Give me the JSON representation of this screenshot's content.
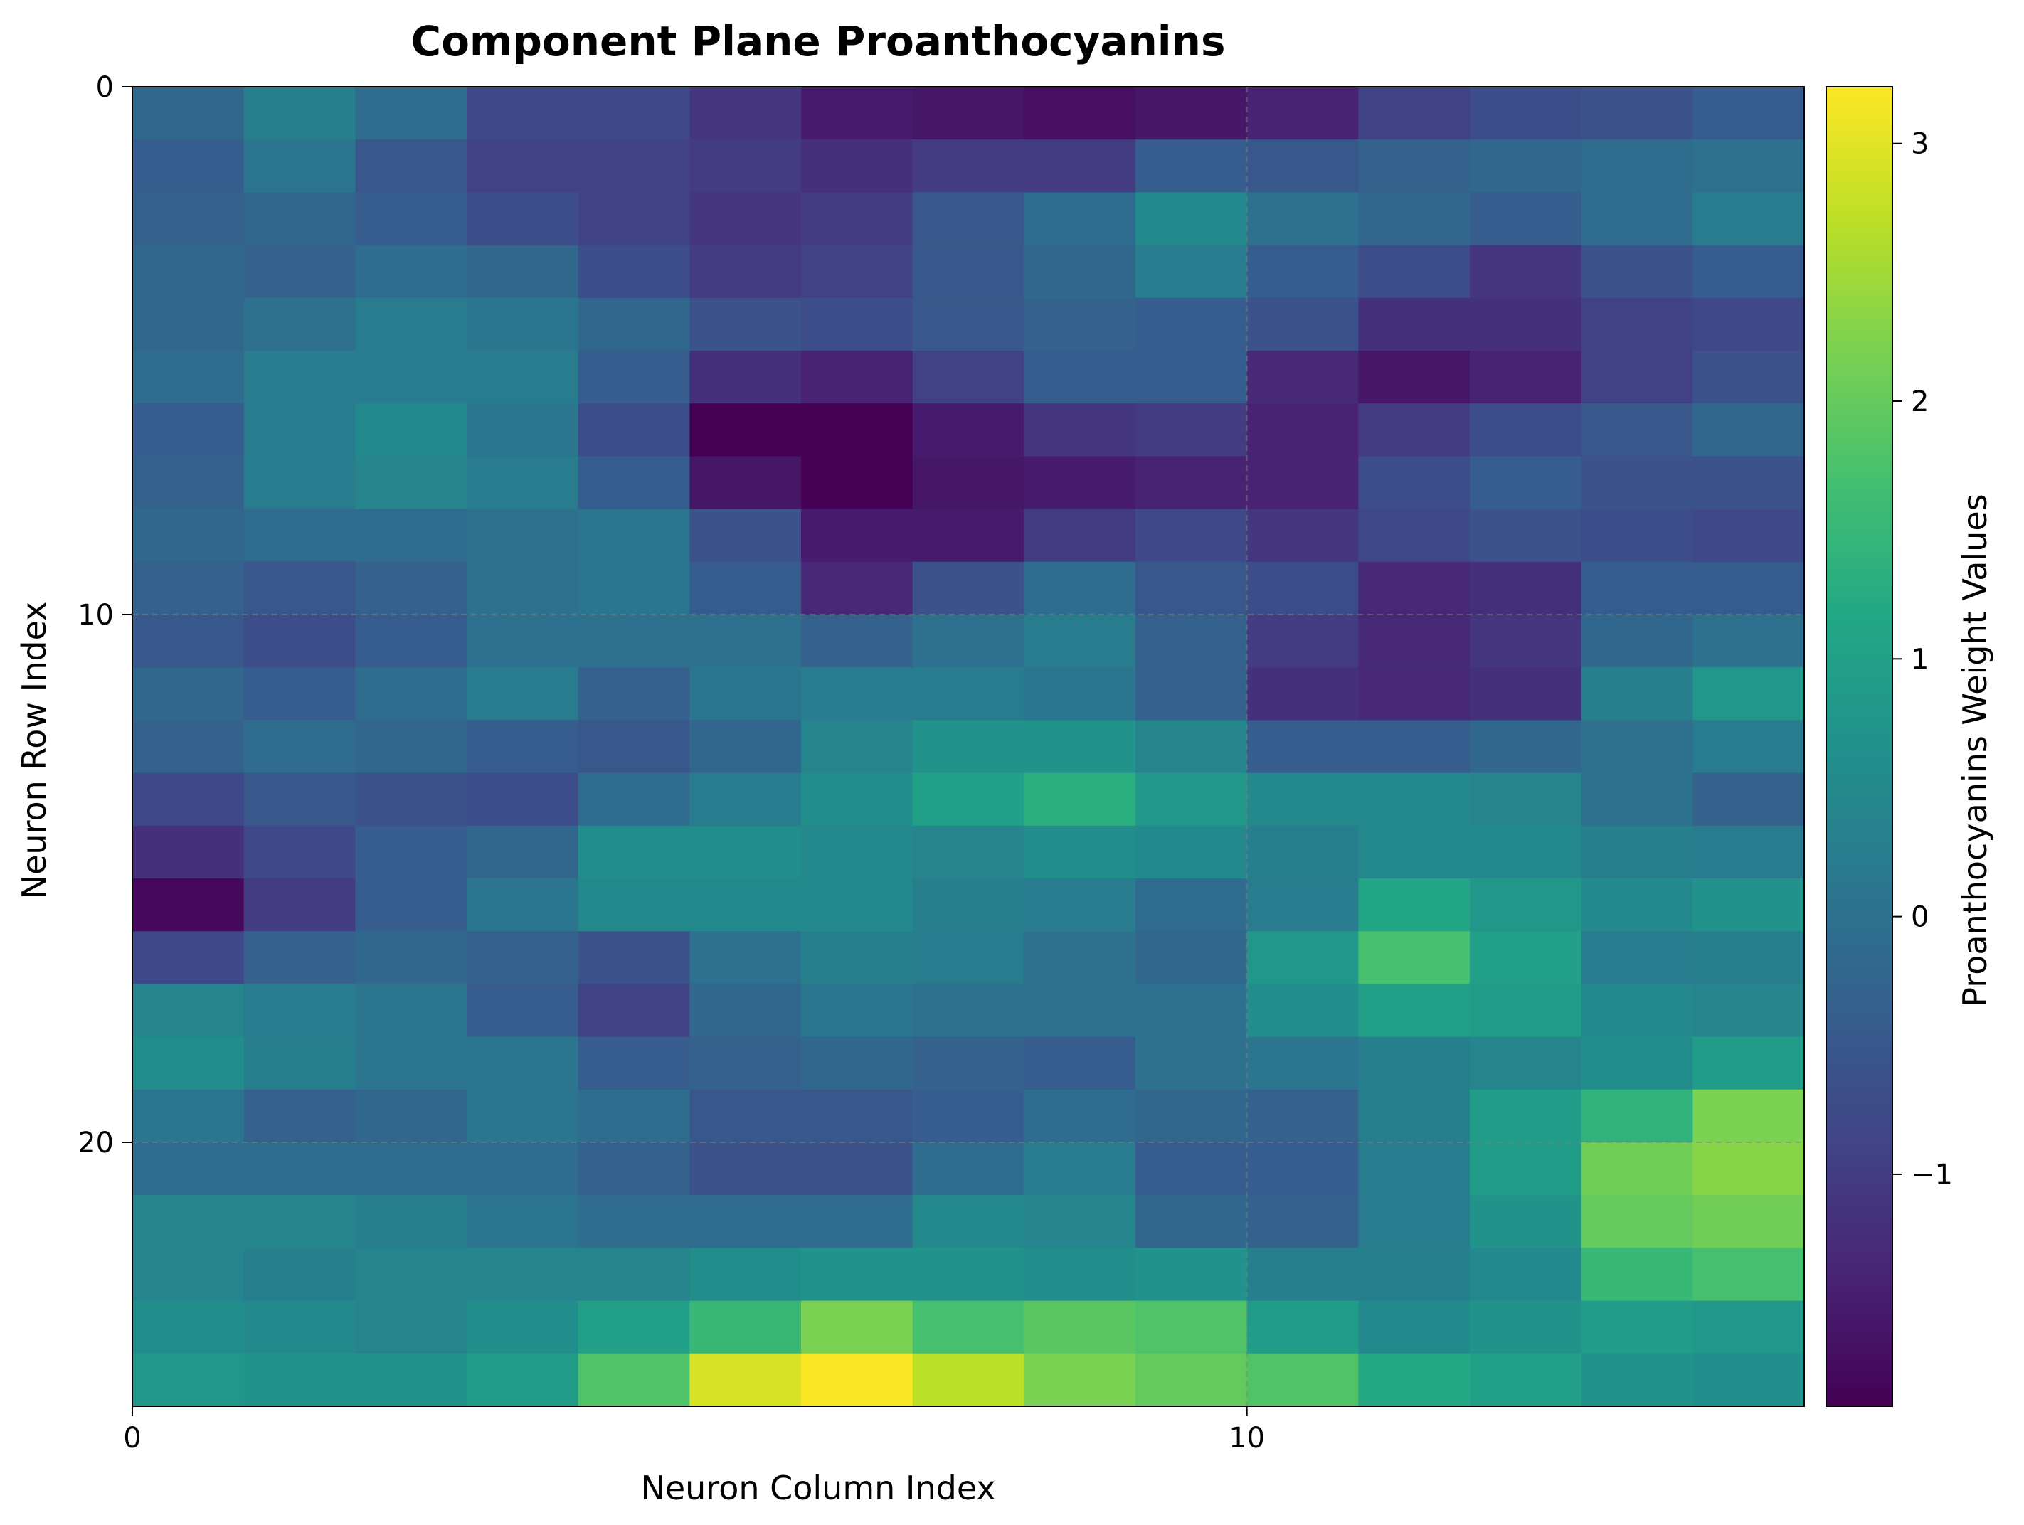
{
  "chart_data": {
    "type": "heatmap",
    "title": "Component Plane Proanthocyanins",
    "xlabel": "Neuron Column Index",
    "ylabel": "Neuron Row Index",
    "colorbar_label": "Proanthocyanins Weight Values",
    "colormap": "viridis",
    "value_range": [
      -1.9,
      3.22
    ],
    "x_ticks": [
      0,
      10
    ],
    "y_ticks": [
      0,
      10,
      20
    ],
    "colorbar_ticks": [
      -1,
      0,
      1,
      2,
      3
    ],
    "colorbar_tick_labels": [
      "−1",
      "0",
      "1",
      "2",
      "3"
    ],
    "grid": true,
    "y_axis_inverted": true,
    "rows": 25,
    "cols": 15,
    "values": [
      [
        -0.2,
        0.3,
        -0.1,
        -0.8,
        -0.8,
        -1.1,
        -1.5,
        -1.6,
        -1.7,
        -1.6,
        -1.4,
        -0.9,
        -0.7,
        -0.6,
        -0.4
      ],
      [
        -0.4,
        0.1,
        -0.5,
        -0.9,
        -0.9,
        -1.0,
        -1.2,
        -1.0,
        -1.0,
        -0.4,
        -0.5,
        -0.3,
        -0.2,
        -0.1,
        0.0
      ],
      [
        -0.3,
        -0.2,
        -0.4,
        -0.7,
        -0.9,
        -1.1,
        -1.0,
        -0.5,
        -0.1,
        0.5,
        0.0,
        -0.2,
        -0.4,
        -0.1,
        0.2
      ],
      [
        -0.2,
        -0.3,
        -0.1,
        -0.2,
        -0.7,
        -1.0,
        -0.9,
        -0.5,
        -0.2,
        0.2,
        -0.4,
        -0.7,
        -1.1,
        -0.6,
        -0.4
      ],
      [
        -0.2,
        0.0,
        0.2,
        0.1,
        -0.2,
        -0.6,
        -0.7,
        -0.5,
        -0.3,
        -0.4,
        -0.6,
        -1.2,
        -1.2,
        -0.9,
        -0.8
      ],
      [
        -0.1,
        0.2,
        0.2,
        0.2,
        -0.4,
        -1.2,
        -1.4,
        -0.9,
        -0.4,
        -0.4,
        -1.3,
        -1.6,
        -1.4,
        -0.9,
        -0.6
      ],
      [
        -0.4,
        0.2,
        0.5,
        0.1,
        -0.7,
        -1.9,
        -1.9,
        -1.5,
        -1.1,
        -1.0,
        -1.4,
        -1.0,
        -0.7,
        -0.5,
        -0.2
      ],
      [
        -0.3,
        0.2,
        0.4,
        0.2,
        -0.4,
        -1.6,
        -1.9,
        -1.6,
        -1.5,
        -1.4,
        -1.4,
        -0.7,
        -0.4,
        -0.6,
        -0.6
      ],
      [
        -0.2,
        -0.1,
        -0.1,
        0.0,
        0.1,
        -0.6,
        -1.5,
        -1.5,
        -1.0,
        -0.8,
        -1.1,
        -0.8,
        -0.6,
        -0.7,
        -0.8
      ],
      [
        -0.3,
        -0.5,
        -0.3,
        0.0,
        0.1,
        -0.4,
        -1.3,
        -0.6,
        -0.1,
        -0.5,
        -0.7,
        -1.3,
        -1.2,
        -0.4,
        -0.4
      ],
      [
        -0.5,
        -0.7,
        -0.4,
        0.0,
        0.0,
        0.0,
        -0.3,
        0.0,
        0.2,
        -0.3,
        -1.0,
        -1.3,
        -1.1,
        -0.2,
        0.0
      ],
      [
        -0.2,
        -0.4,
        -0.1,
        0.2,
        -0.3,
        0.1,
        0.2,
        0.2,
        0.1,
        -0.3,
        -1.2,
        -1.3,
        -1.2,
        0.3,
        0.8
      ],
      [
        -0.3,
        -0.1,
        -0.2,
        -0.4,
        -0.5,
        -0.2,
        0.4,
        0.7,
        0.7,
        0.4,
        -0.4,
        -0.4,
        -0.2,
        0.0,
        0.2
      ],
      [
        -0.8,
        -0.5,
        -0.6,
        -0.7,
        -0.1,
        0.2,
        0.6,
        1.0,
        1.3,
        0.8,
        0.5,
        0.5,
        0.4,
        0.0,
        -0.3
      ],
      [
        -1.2,
        -0.8,
        -0.4,
        -0.2,
        0.6,
        0.6,
        0.5,
        0.4,
        0.6,
        0.5,
        0.3,
        0.5,
        0.5,
        0.3,
        0.2
      ],
      [
        -1.8,
        -1.0,
        -0.4,
        0.1,
        0.5,
        0.5,
        0.5,
        0.3,
        0.2,
        -0.1,
        0.2,
        1.1,
        0.8,
        0.5,
        0.7
      ],
      [
        -0.8,
        -0.3,
        -0.2,
        -0.3,
        -0.6,
        0.0,
        0.3,
        0.2,
        0.0,
        -0.2,
        0.8,
        1.7,
        1.0,
        0.2,
        0.3
      ],
      [
        0.4,
        0.2,
        0.1,
        -0.4,
        -0.9,
        -0.2,
        0.1,
        0.0,
        0.0,
        0.0,
        0.6,
        1.0,
        0.9,
        0.5,
        0.4
      ],
      [
        0.6,
        0.3,
        0.1,
        0.1,
        -0.4,
        -0.3,
        -0.2,
        -0.3,
        -0.4,
        0.0,
        0.1,
        0.3,
        0.4,
        0.6,
        0.9
      ],
      [
        0.1,
        -0.3,
        -0.2,
        0.1,
        -0.1,
        -0.5,
        -0.5,
        -0.4,
        -0.1,
        -0.2,
        -0.3,
        0.3,
        0.9,
        1.4,
        2.2
      ],
      [
        -0.1,
        -0.1,
        -0.1,
        -0.1,
        -0.3,
        -0.6,
        -0.6,
        -0.1,
        0.2,
        -0.4,
        -0.4,
        0.2,
        0.9,
        2.1,
        2.3
      ],
      [
        0.4,
        0.4,
        0.3,
        0.1,
        -0.1,
        -0.1,
        -0.1,
        0.5,
        0.4,
        -0.2,
        -0.3,
        0.2,
        0.7,
        2.0,
        2.1
      ],
      [
        0.4,
        0.3,
        0.4,
        0.4,
        0.4,
        0.6,
        0.7,
        0.7,
        0.6,
        0.7,
        0.3,
        0.3,
        0.5,
        1.5,
        1.7
      ],
      [
        0.6,
        0.5,
        0.4,
        0.6,
        1.0,
        1.5,
        2.2,
        1.7,
        1.9,
        1.8,
        0.9,
        0.5,
        0.7,
        0.9,
        0.8
      ],
      [
        0.8,
        0.7,
        0.7,
        0.9,
        1.8,
        2.9,
        3.2,
        2.7,
        2.2,
        2.0,
        1.8,
        1.2,
        1.0,
        0.7,
        0.6
      ]
    ]
  }
}
